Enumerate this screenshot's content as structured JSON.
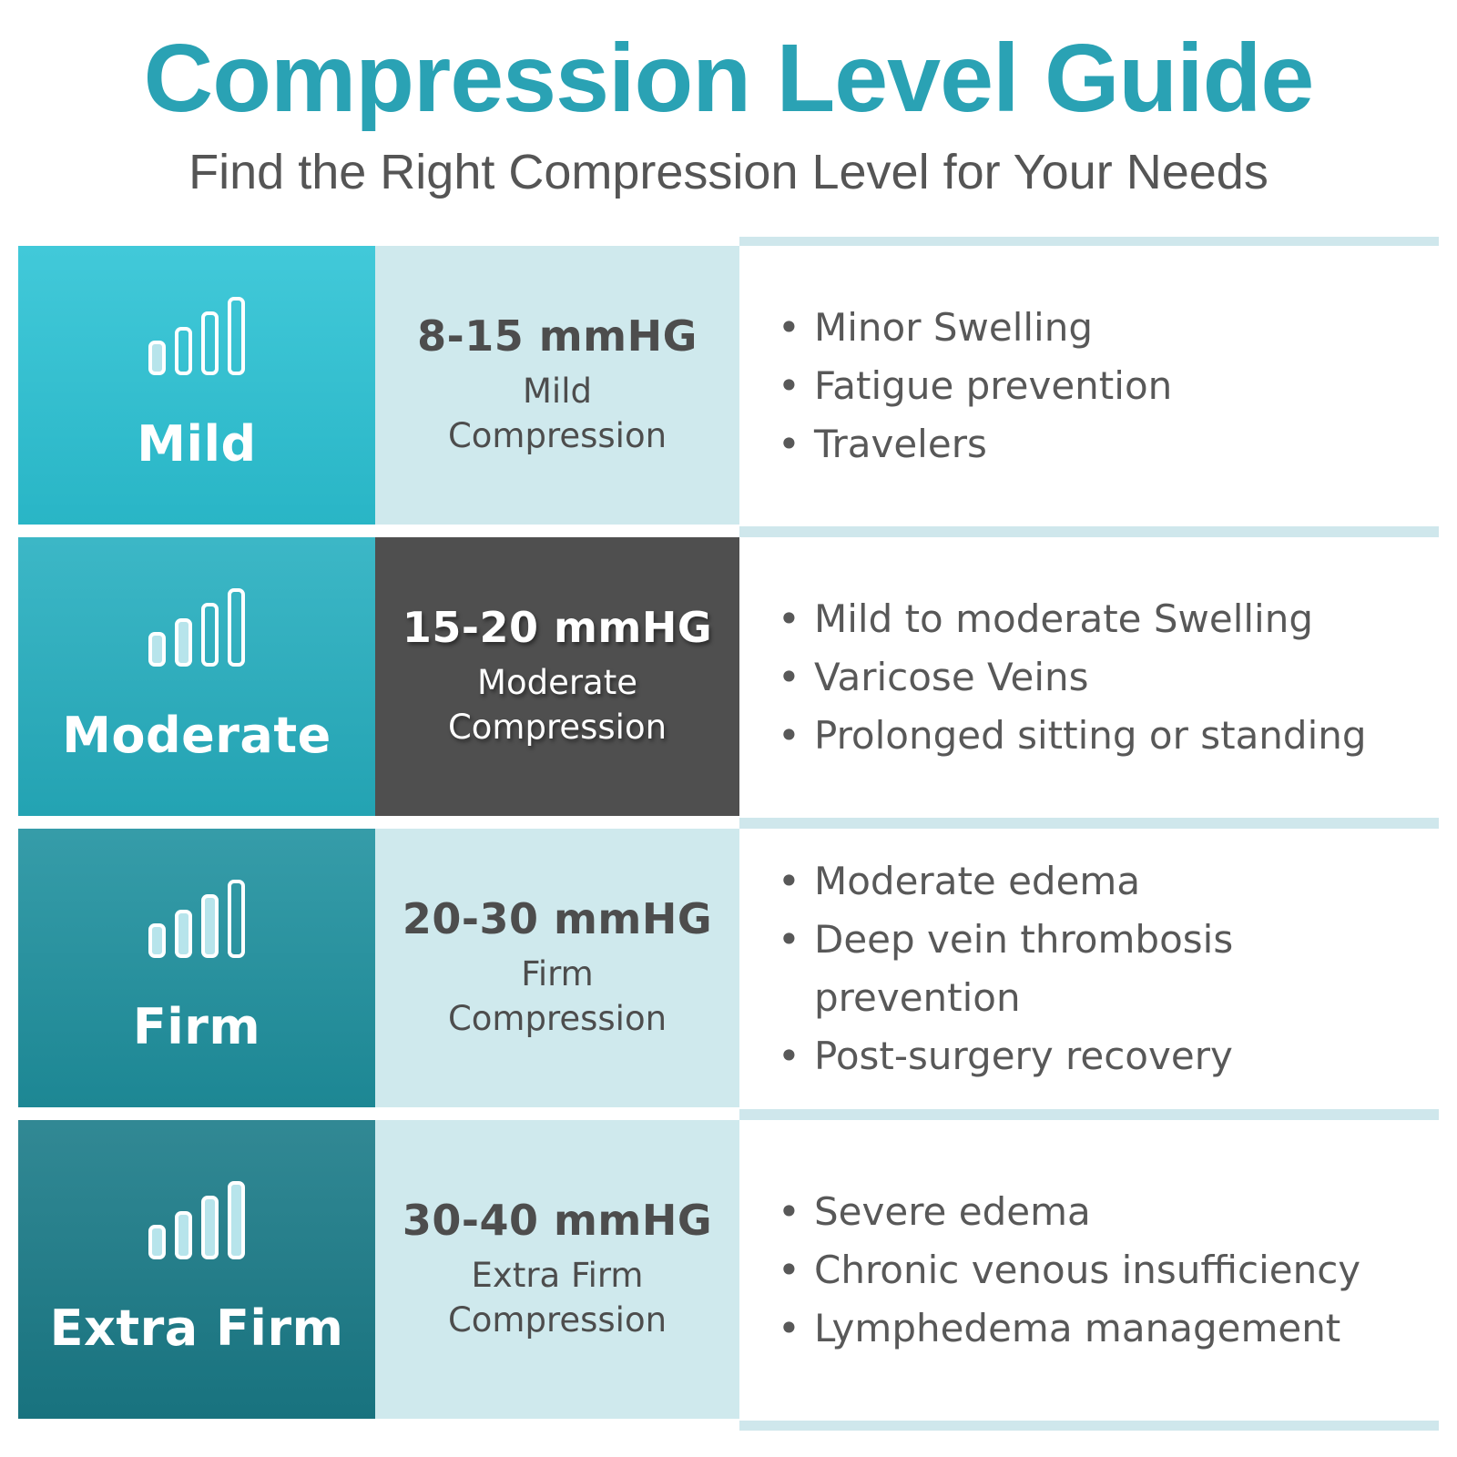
{
  "header": {
    "title": "Compression Level Guide",
    "subtitle": "Find the Right Compression Level for Your Needs"
  },
  "colors": {
    "title_text": "#2aa2b4",
    "subtitle_text": "#555555",
    "body_text": "#585858",
    "card_trim": "#cfe7ec",
    "icon_bar_fill": "#b7e4eb",
    "mid_light_bg": "#cfe9ed",
    "mid_dark_bg": "#4f4f4f"
  },
  "rows": [
    {
      "level": "Mild",
      "icon": "signal-bars-icon",
      "icon_filled_bars": 1,
      "accent": "#2cc3d5",
      "range": "8-15 mmHG",
      "type": "Mild\nCompression",
      "mid_theme": "light",
      "uses": [
        "Minor Swelling",
        "Fatigue prevention",
        "Travelers"
      ]
    },
    {
      "level": "Moderate",
      "icon": "signal-bars-icon",
      "icon_filled_bars": 2,
      "accent": "#26afc0",
      "range": "15-20 mmHG",
      "type": "Moderate\nCompression",
      "mid_theme": "dark",
      "uses": [
        "Mild to moderate Swelling",
        "Varicose Veins",
        "Prolonged sitting or standing"
      ]
    },
    {
      "level": "Firm",
      "icon": "signal-bars-icon",
      "icon_filled_bars": 3,
      "accent": "#1f919f",
      "range": "20-30 mmHG",
      "type": "Firm\nCompression",
      "mid_theme": "light",
      "uses": [
        "Moderate edema",
        "Deep vein thrombosis\nprevention",
        "Post-surgery recovery"
      ]
    },
    {
      "level": "Extra Firm",
      "icon": "signal-bars-icon",
      "icon_filled_bars": 4,
      "accent": "#1a7b88",
      "range": "30-40 mmHG",
      "type": "Extra Firm\nCompression",
      "mid_theme": "light",
      "uses": [
        "Severe edema",
        "Chronic venous insufficiency",
        "Lymphedema management"
      ]
    }
  ]
}
